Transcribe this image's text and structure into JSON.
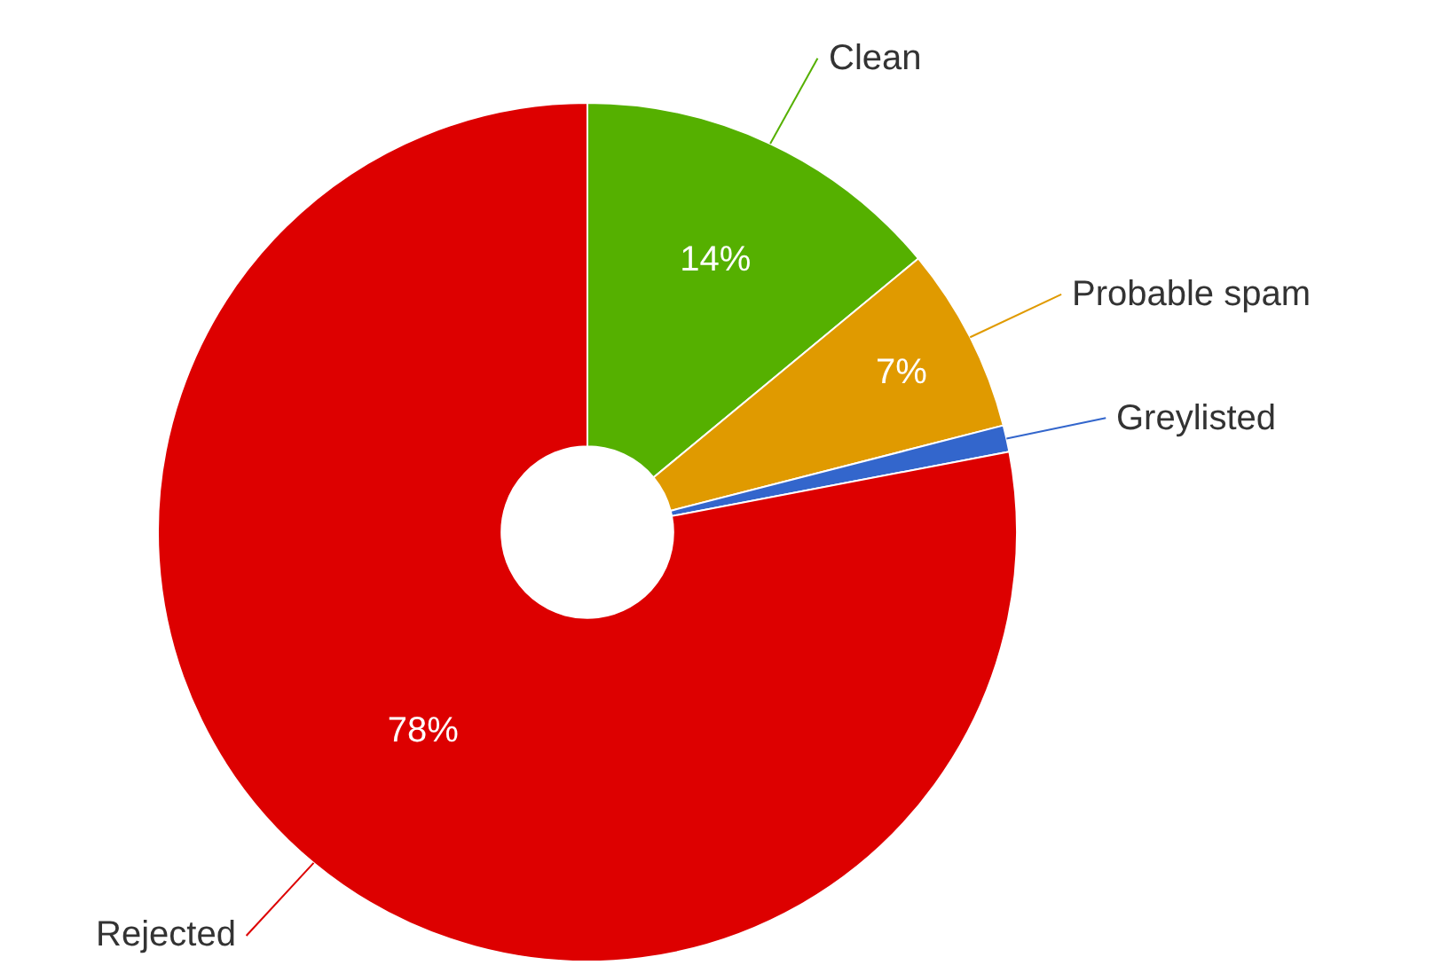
{
  "chart_data": {
    "type": "donut",
    "categories": [
      "Clean",
      "Probable spam",
      "Greylisted",
      "Rejected"
    ],
    "values": [
      14,
      7,
      1,
      78
    ],
    "colors": [
      "#55b000",
      "#e09a00",
      "#3366cc",
      "#dd0000"
    ],
    "value_labels": [
      "14%",
      "7%",
      null,
      "78%"
    ],
    "legend": false
  }
}
